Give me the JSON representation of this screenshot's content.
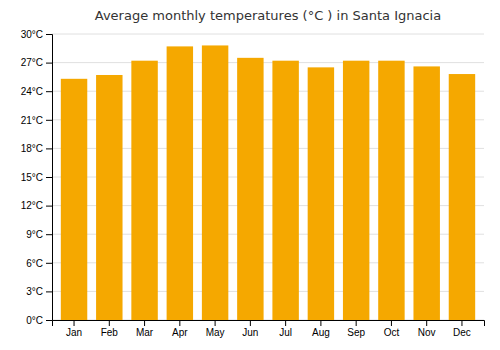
{
  "chart_data": {
    "type": "bar",
    "title": "Average monthly temperatures (°C ) in Santa Ignacia",
    "categories": [
      "Jan",
      "Feb",
      "Mar",
      "Apr",
      "May",
      "Jun",
      "Jul",
      "Aug",
      "Sep",
      "Oct",
      "Nov",
      "Dec"
    ],
    "values": [
      25.3,
      25.7,
      27.2,
      28.7,
      28.8,
      27.5,
      27.2,
      26.5,
      27.2,
      27.2,
      26.6,
      25.8
    ],
    "color": "#F5A800",
    "ylim": [
      0,
      30
    ],
    "yticks": [
      {
        "value": 0,
        "label": "0°C"
      },
      {
        "value": 3,
        "label": "3°C"
      },
      {
        "value": 6,
        "label": "6°C"
      },
      {
        "value": 9,
        "label": "9°C"
      },
      {
        "value": 12,
        "label": "12°C"
      },
      {
        "value": 15,
        "label": "15°C"
      },
      {
        "value": 18,
        "label": "18°C"
      },
      {
        "value": 21,
        "label": "21°C"
      },
      {
        "value": 24,
        "label": "24°C"
      },
      {
        "value": 27,
        "label": "27°C"
      },
      {
        "value": 30,
        "label": "30°C"
      }
    ],
    "grid": true
  }
}
